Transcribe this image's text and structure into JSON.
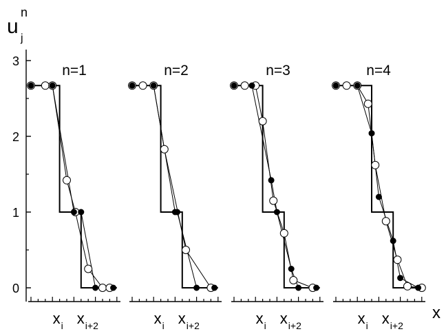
{
  "chart_data": {
    "type": "line",
    "ylabel": {
      "base": "u",
      "sub": "j",
      "sup": "n"
    },
    "xlabel": "x",
    "ylim": [
      0,
      3
    ],
    "yticks": [
      "0",
      "1",
      "2",
      "3"
    ],
    "xmark_labels": [
      {
        "base": "x",
        "sub": "i"
      },
      {
        "base": "x",
        "sub": "i+2"
      }
    ],
    "panels": [
      {
        "title": "n=1",
        "exact": {
          "x": [
            0,
            4,
            4,
            7,
            7,
            12
          ],
          "y": [
            2.67,
            2.67,
            1.0,
            1.0,
            0.0,
            0.0
          ]
        },
        "open": {
          "x": [
            0,
            2,
            3,
            5,
            6.2,
            8,
            10,
            11
          ],
          "y": [
            2.67,
            2.67,
            2.67,
            1.42,
            1.0,
            0.25,
            0.0,
            0.0
          ]
        },
        "filled": {
          "x": [
            0,
            3,
            6,
            7,
            9,
            11.5
          ],
          "y": [
            2.67,
            2.67,
            1.0,
            1.0,
            0.0,
            0.0
          ]
        }
      },
      {
        "title": "n=2",
        "exact": {
          "x": [
            0,
            4,
            4,
            7,
            7,
            12
          ],
          "y": [
            2.67,
            2.67,
            1.0,
            1.0,
            0.0,
            0.0
          ]
        },
        "open": {
          "x": [
            0,
            1.5,
            3,
            4.5,
            7.5,
            11
          ],
          "y": [
            2.67,
            2.67,
            2.67,
            1.83,
            0.5,
            0.0
          ]
        },
        "filled": {
          "x": [
            0,
            3,
            6,
            6.3,
            9,
            11.5
          ],
          "y": [
            2.67,
            2.67,
            1.0,
            1.0,
            0.0,
            0.0
          ]
        }
      },
      {
        "title": "n=3",
        "exact": {
          "x": [
            0,
            4,
            4,
            7,
            7,
            12
          ],
          "y": [
            2.67,
            2.67,
            1.0,
            1.0,
            0.0,
            0.0
          ]
        },
        "open": {
          "x": [
            0,
            1.5,
            3,
            4.0,
            5.5,
            7.0,
            8.3,
            11
          ],
          "y": [
            2.67,
            2.67,
            2.67,
            2.2,
            1.15,
            0.72,
            0.1,
            0.0
          ]
        },
        "filled": {
          "x": [
            0,
            2.5,
            5.2,
            6.0,
            8,
            9,
            11.5
          ],
          "y": [
            2.67,
            2.67,
            1.42,
            1.0,
            0.25,
            0.0,
            0.0
          ]
        }
      },
      {
        "title": "n=4",
        "exact": {
          "x": [
            0,
            5,
            5,
            8,
            8,
            12
          ],
          "y": [
            2.67,
            2.67,
            1.0,
            1.0,
            0.0,
            0.0
          ]
        },
        "open": {
          "x": [
            0,
            1.5,
            3,
            4.5,
            5.5,
            7.0,
            8.6,
            10,
            12
          ],
          "y": [
            2.67,
            2.67,
            2.67,
            2.43,
            1.62,
            0.88,
            0.37,
            0.02,
            0.0
          ]
        },
        "filled": {
          "x": [
            0,
            3,
            5,
            6,
            8,
            9,
            11.5
          ],
          "y": [
            2.67,
            2.67,
            2.04,
            1.2,
            0.62,
            0.13,
            0.0
          ]
        }
      }
    ]
  }
}
